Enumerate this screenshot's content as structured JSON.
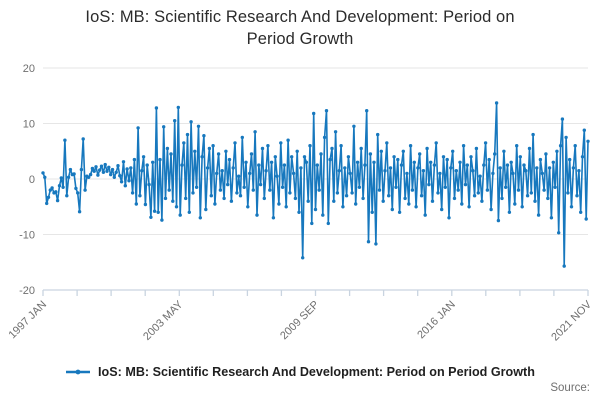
{
  "title": {
    "text": "IoS: MB: Scientific Research And Development: Period on Period Growth",
    "lines": [
      "IoS: MB: Scientific Research And Development: Period on",
      "Period Growth"
    ]
  },
  "legend": {
    "label": "IoS: MB: Scientific Research And Development: Period on Period Growth",
    "marker_color": "#1778be"
  },
  "source": {
    "label": "Source:"
  },
  "colors": {
    "series_blue": "#1778be",
    "axis": "#c9d4e0",
    "grid": "#e6e6e6",
    "tick_label": "#6f6f6f",
    "title_text": "#2b2b2b",
    "background": "#ffffff"
  },
  "chart_data": {
    "type": "line",
    "title": "IoS: MB: Scientific Research And Development: Period on Period Growth",
    "x_frequency": "monthly",
    "x_start": "1997 JAN",
    "x_end": "2021 NOV",
    "x_tick_count": 17,
    "x_tick_labels": [
      "1997 JAN",
      "2003 MAY",
      "2009 SEP",
      "2016 JAN",
      "2021 NOV"
    ],
    "x_labeled_tick_indices": [
      0,
      4,
      8,
      12,
      16
    ],
    "ylim": [
      -20,
      20
    ],
    "y_ticks": [
      20,
      10,
      0,
      -10,
      -20
    ],
    "grid": "horizontal",
    "legend_position": "bottom",
    "series": [
      {
        "name": "IoS: MB: Scientific Research And Development: Period on Period Growth",
        "color": "#1778be",
        "marker": "circle",
        "values": [
          1.1,
          0.3,
          -4.4,
          -3.3,
          -2.0,
          -1.6,
          -2.5,
          -2.3,
          -3.9,
          -1.2,
          0.2,
          -1.5,
          7.0,
          -3.0,
          0.3,
          1.7,
          0.8,
          0.9,
          -1.7,
          -2.5,
          -5.9,
          1.7,
          7.2,
          -2.0,
          0.5,
          0.3,
          0.8,
          1.9,
          1.4,
          2.2,
          0.7,
          1.6,
          2.3,
          1.2,
          2.6,
          1.4,
          2.1,
          0.8,
          1.7,
          0.3,
          1.2,
          2.4,
          0.6,
          -0.5,
          3.1,
          -1.2,
          1.8,
          -0.3,
          2.0,
          -2.5,
          3.5,
          -4.5,
          9.2,
          -3.0,
          1.5,
          4.0,
          -4.6,
          2.5,
          -1.0,
          -6.9,
          3.0,
          -5.8,
          12.8,
          -6.0,
          3.5,
          -7.4,
          9.4,
          -3.5,
          5.5,
          -2.0,
          4.5,
          -4.0,
          10.5,
          -5.0,
          12.9,
          -6.5,
          2.5,
          6.5,
          -3.5,
          8.0,
          -6.0,
          10.3,
          -2.5,
          5.0,
          -1.5,
          9.5,
          -7.0,
          4.0,
          7.8,
          -5.5,
          2.0,
          5.5,
          -3.0,
          6.0,
          -4.5,
          1.0,
          4.5,
          -2.0,
          1.5,
          -3.5,
          5.0,
          -1.0,
          3.5,
          -4.0,
          2.0,
          6.5,
          -2.5,
          0.5,
          -3.0,
          7.5,
          -1.5,
          3.0,
          -5.0,
          1.0,
          4.5,
          -2.0,
          8.5,
          -6.5,
          2.5,
          -1.0,
          5.5,
          -3.5,
          1.5,
          6.0,
          -2.0,
          3.0,
          -7.0,
          4.0,
          0.5,
          -4.5,
          6.5,
          -1.5,
          2.5,
          -5.0,
          7.0,
          -2.5,
          4.0,
          1.0,
          -3.5,
          5.0,
          -6.0,
          2.0,
          -14.2,
          4.0,
          3.0,
          -4.0,
          6.0,
          -8.0,
          11.8,
          -5.5,
          2.5,
          -2.0,
          4.5,
          -6.5,
          7.5,
          12.3,
          -8.0,
          3.5,
          5.5,
          -4.0,
          8.5,
          -2.5,
          1.5,
          6.0,
          -5.0,
          2.0,
          -3.0,
          4.0,
          1.0,
          -2.5,
          9.5,
          -4.5,
          3.0,
          -1.5,
          5.5,
          -3.5,
          2.5,
          12.3,
          -11.3,
          4.5,
          -6.0,
          3.0,
          -11.7,
          8.0,
          -2.0,
          5.0,
          -4.0,
          1.5,
          6.5,
          -3.0,
          2.0,
          -5.5,
          4.0,
          -1.5,
          3.5,
          -6.0,
          2.5,
          5.0,
          -3.5,
          1.0,
          -4.5,
          6.0,
          -2.0,
          3.0,
          -5.0,
          2.0,
          4.5,
          -3.0,
          1.5,
          -6.5,
          5.5,
          -1.0,
          3.0,
          -4.0,
          2.5,
          6.5,
          -2.5,
          1.0,
          -5.5,
          4.0,
          -1.5,
          3.5,
          -7.0,
          2.0,
          5.0,
          -3.5,
          1.5,
          -2.0,
          3.0,
          -4.5,
          6.0,
          -1.0,
          2.5,
          -5.0,
          4.0,
          1.5,
          -3.0,
          5.5,
          -2.5,
          0.5,
          -4.0,
          2.5,
          6.5,
          -2.0,
          3.5,
          -5.5,
          1.0,
          4.5,
          13.7,
          -7.5,
          2.0,
          -3.5,
          5.0,
          -1.5,
          2.5,
          -6.0,
          3.0,
          1.0,
          -4.5,
          6.0,
          -2.0,
          4.0,
          -5.0,
          2.5,
          1.5,
          -3.0,
          5.5,
          -2.5,
          8.0,
          -4.0,
          2.0,
          -6.5,
          3.5,
          1.0,
          -2.0,
          4.5,
          -3.5,
          2.0,
          -7.0,
          3.0,
          -1.5,
          5.0,
          -9.7,
          6.0,
          10.8,
          -15.7,
          7.5,
          -2.5,
          3.5,
          -5.0,
          2.0,
          6.0,
          -3.0,
          1.5,
          -6.0,
          4.0,
          8.8,
          -7.2,
          6.8
        ]
      }
    ]
  }
}
